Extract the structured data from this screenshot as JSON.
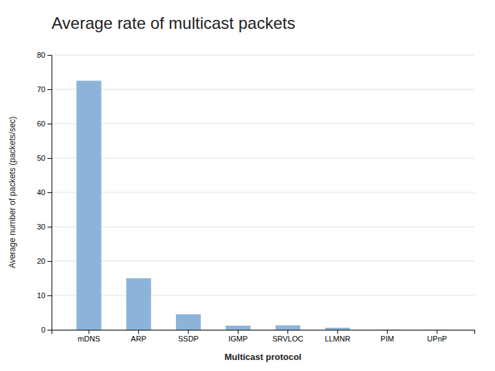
{
  "chart_data": {
    "type": "bar",
    "title": "Average rate of multicast packets",
    "xlabel": "Multicast protocol",
    "ylabel": "Average number of packets (packets/sec)",
    "categories": [
      "mDNS",
      "ARP",
      "SSDP",
      "IGMP",
      "SRVLOC",
      "LLMNR",
      "PIM",
      "UPnP"
    ],
    "values": [
      72.5,
      15.0,
      4.5,
      1.2,
      1.3,
      0.6,
      0.05,
      0.02
    ],
    "color": "#8DB4D8",
    "ylim": [
      0,
      80
    ],
    "yticks": [
      0,
      10,
      20,
      30,
      40,
      50,
      60,
      70,
      80
    ],
    "grid": true
  }
}
